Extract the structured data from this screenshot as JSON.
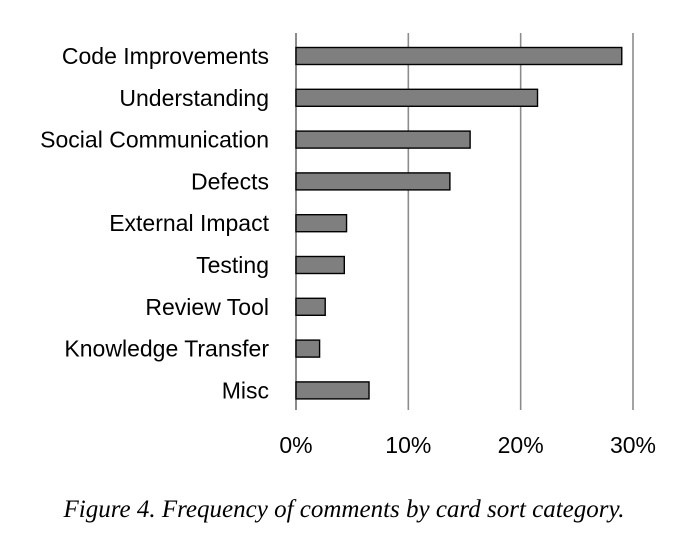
{
  "chart_data": {
    "type": "bar",
    "orientation": "horizontal",
    "categories": [
      "Code Improvements",
      "Understanding",
      "Social Communication",
      "Defects",
      "External Impact",
      "Testing",
      "Review Tool",
      "Knowledge Transfer",
      "Misc"
    ],
    "values": [
      29,
      21.5,
      15.5,
      13.7,
      4.5,
      4.3,
      2.6,
      2.1,
      6.5
    ],
    "xlim": [
      0,
      30
    ],
    "xticks": [
      "0%",
      "10%",
      "20%",
      "30%"
    ],
    "xtick_values": [
      0,
      10,
      20,
      30
    ],
    "grid": "vertical",
    "bar_color": "#7f7f7f",
    "bar_edge_color": "#000000",
    "grid_color": "#8c8c8c"
  },
  "caption": "Figure 4. Frequency of comments by card sort category."
}
